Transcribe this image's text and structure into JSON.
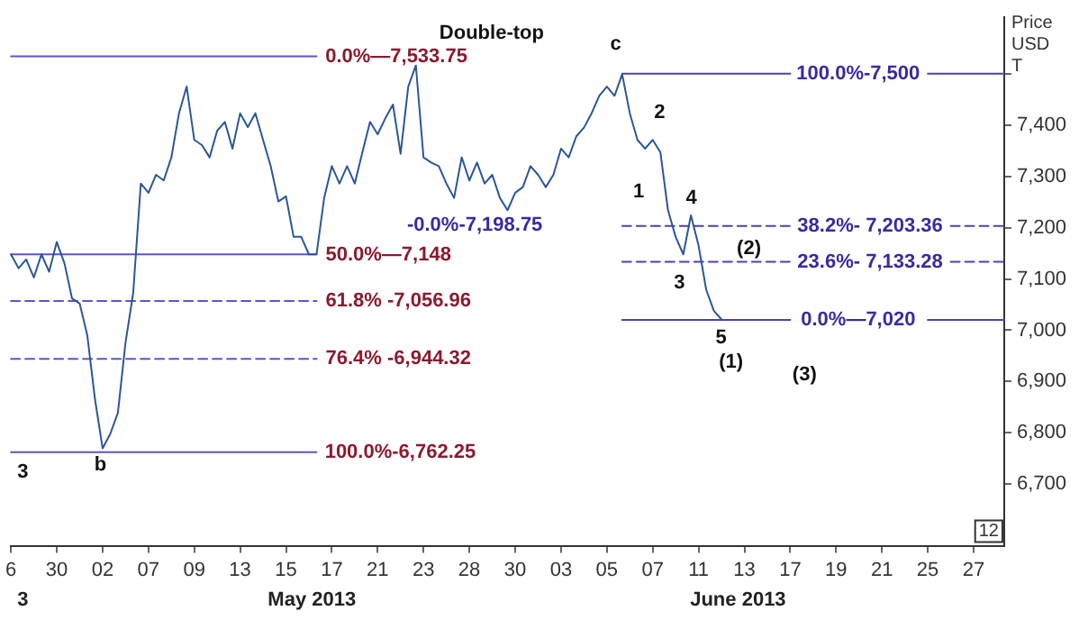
{
  "chart_data": {
    "type": "line",
    "ylabel": "Price USD T",
    "ylim": [
      6580,
      7610
    ],
    "categories": [
      "6",
      null,
      null,
      null,
      null,
      null,
      "30",
      null,
      null,
      null,
      null,
      null,
      "02",
      null,
      null,
      null,
      null,
      null,
      "07",
      null,
      null,
      null,
      null,
      null,
      "09",
      null,
      null,
      null,
      null,
      null,
      "13",
      null,
      null,
      null,
      null,
      null,
      "15",
      null,
      null,
      null,
      null,
      null,
      "17",
      null,
      null,
      null,
      null,
      null,
      "21",
      null,
      null,
      null,
      null,
      null,
      "23",
      null,
      null,
      null,
      null,
      null,
      "28",
      null,
      null,
      null,
      null,
      null,
      "30",
      null,
      null,
      null,
      null,
      null,
      "03",
      null,
      null,
      null,
      null,
      null,
      "05",
      null,
      null,
      null,
      null,
      null,
      "07",
      null,
      null,
      null,
      null,
      null,
      "11",
      null,
      null,
      null,
      null,
      null,
      "13",
      null,
      null,
      null,
      null,
      null,
      "17",
      null,
      null,
      null,
      null,
      null,
      "19",
      null,
      null,
      null,
      null,
      null,
      "21",
      null,
      null,
      null,
      null,
      null,
      "25",
      null,
      null,
      null,
      null,
      null,
      "27",
      null,
      null,
      null,
      null
    ],
    "yticks": [
      {
        "value": 6700,
        "label": "6,700"
      },
      {
        "value": 6800,
        "label": "6,800"
      },
      {
        "value": 6900,
        "label": "6,900"
      },
      {
        "value": 7000,
        "label": "7,000"
      },
      {
        "value": 7100,
        "label": "7,100"
      },
      {
        "value": 7200,
        "label": "7,200"
      },
      {
        "value": 7300,
        "label": "7,300"
      },
      {
        "value": 7400,
        "label": "7,400"
      },
      {
        "value": 7500,
        "label": null
      }
    ],
    "grid": false,
    "legend": false,
    "marker": "none",
    "series": [
      {
        "type": "line",
        "color": "#2b5797",
        "values": [
          7148,
          7121,
          7138,
          7103,
          7148,
          7114,
          7172,
          7131,
          7062,
          7052,
          6990,
          6866,
          6770,
          6798,
          6839,
          6976,
          7072,
          7286,
          7268,
          7303,
          7292,
          7337,
          7423,
          7475,
          7371,
          7361,
          7337,
          7389,
          7406,
          7354,
          7423,
          7396,
          7423,
          7371,
          7320,
          7251,
          7261,
          7182,
          7182,
          7148,
          7148,
          7258,
          7320,
          7286,
          7320,
          7286,
          7347,
          7406,
          7382,
          7413,
          7440,
          7344,
          7475,
          7516,
          7337,
          7327,
          7320,
          7286,
          7258,
          7337,
          7292,
          7327,
          7286,
          7303,
          7258,
          7234,
          7268,
          7279,
          7320,
          7303,
          7279,
          7303,
          7354,
          7337,
          7378,
          7395,
          7423,
          7457,
          7475,
          7457,
          7499,
          7423,
          7371,
          7354,
          7371,
          7347,
          7234,
          7182,
          7148,
          7224,
          7165,
          7079,
          7038,
          7021,
          null,
          null,
          null,
          null,
          null,
          null,
          null,
          null,
          null,
          null,
          null,
          null,
          null,
          null,
          null,
          null,
          null,
          null,
          null,
          null,
          null,
          null,
          null,
          null,
          null,
          null,
          null,
          null,
          null,
          null,
          null,
          null,
          null,
          null,
          null,
          null,
          null
        ]
      },
      {
        "type": "line",
        "color": "#5b55c8",
        "values": [
          7533.75,
          7533.75,
          7533.75,
          7533.75,
          7533.75,
          7533.75,
          7533.75,
          7533.75,
          7533.75,
          7533.75,
          7533.75,
          7533.75,
          7533.75,
          7533.75,
          7533.75,
          7533.75,
          7533.75,
          7533.75,
          7533.75,
          7533.75,
          7533.75,
          7533.75,
          7533.75,
          7533.75,
          7533.75,
          7533.75,
          7533.75,
          7533.75,
          7533.75,
          7533.75,
          7533.75,
          7533.75,
          7533.75,
          7533.75,
          7533.75,
          7533.75,
          7533.75,
          7533.75,
          7533.75,
          7533.75,
          7533.75,
          null,
          null,
          null,
          null,
          null,
          null,
          null,
          null,
          null,
          null,
          null,
          null,
          null,
          null,
          null,
          null,
          null,
          null,
          null,
          null,
          null,
          null,
          null,
          null,
          null,
          null,
          null,
          null,
          null,
          null,
          null,
          null,
          null,
          null,
          null,
          null,
          null,
          null,
          null,
          null,
          null,
          null,
          null,
          null,
          null,
          null,
          null,
          null,
          null,
          null,
          null,
          null,
          null,
          null,
          null,
          null,
          null,
          null,
          null,
          null,
          null,
          null,
          null,
          null,
          null,
          null,
          null,
          null,
          null,
          null,
          null,
          null,
          null,
          null,
          null,
          null,
          null,
          null,
          null,
          null,
          null,
          null,
          null,
          null,
          null,
          null,
          null,
          null,
          null,
          null
        ]
      },
      {
        "type": "line",
        "color": "#5b55c8",
        "values": [
          7148,
          7148,
          7148,
          7148,
          7148,
          7148,
          7148,
          7148,
          7148,
          7148,
          7148,
          7148,
          7148,
          7148,
          7148,
          7148,
          7148,
          7148,
          7148,
          7148,
          7148,
          7148,
          7148,
          7148,
          7148,
          7148,
          7148,
          7148,
          7148,
          7148,
          7148,
          7148,
          7148,
          7148,
          7148,
          7148,
          7148,
          7148,
          7148,
          7148,
          7148,
          null,
          null,
          null,
          null,
          null,
          null,
          null,
          null,
          null,
          null,
          null,
          null,
          null,
          null,
          null,
          null,
          null,
          null,
          null,
          null,
          null,
          null,
          null,
          null,
          null,
          null,
          null,
          null,
          null,
          null,
          null,
          null,
          null,
          null,
          null,
          null,
          null,
          null,
          null,
          null,
          null,
          null,
          null,
          null,
          null,
          null,
          null,
          null,
          null,
          null,
          null,
          null,
          null,
          null,
          null,
          null,
          null,
          null,
          null,
          null,
          null,
          null,
          null,
          null,
          null,
          null,
          null,
          null,
          null,
          null,
          null,
          null,
          null,
          null,
          null,
          null,
          null,
          null,
          null,
          null,
          null,
          null,
          null,
          null,
          null,
          null,
          null,
          null,
          null,
          null
        ]
      },
      {
        "type": "line",
        "color": "#5b55c8",
        "line_style": "dashed",
        "values": [
          7056.96,
          7056.96,
          7056.96,
          7056.96,
          7056.96,
          7056.96,
          7056.96,
          7056.96,
          7056.96,
          7056.96,
          7056.96,
          7056.96,
          7056.96,
          7056.96,
          7056.96,
          7056.96,
          7056.96,
          7056.96,
          7056.96,
          7056.96,
          7056.96,
          7056.96,
          7056.96,
          7056.96,
          7056.96,
          7056.96,
          7056.96,
          7056.96,
          7056.96,
          7056.96,
          7056.96,
          7056.96,
          7056.96,
          7056.96,
          7056.96,
          7056.96,
          7056.96,
          7056.96,
          7056.96,
          7056.96,
          7056.96,
          null,
          null,
          null,
          null,
          null,
          null,
          null,
          null,
          null,
          null,
          null,
          null,
          null,
          null,
          null,
          null,
          null,
          null,
          null,
          null,
          null,
          null,
          null,
          null,
          null,
          null,
          null,
          null,
          null,
          null,
          null,
          null,
          null,
          null,
          null,
          null,
          null,
          null,
          null,
          null,
          null,
          null,
          null,
          null,
          null,
          null,
          null,
          null,
          null,
          null,
          null,
          null,
          null,
          null,
          null,
          null,
          null,
          null,
          null,
          null,
          null,
          null,
          null,
          null,
          null,
          null,
          null,
          null,
          null,
          null,
          null,
          null,
          null,
          null,
          null,
          null,
          null,
          null,
          null,
          null,
          null,
          null,
          null,
          null,
          null,
          null,
          null,
          null,
          null,
          null
        ]
      },
      {
        "type": "line",
        "color": "#5b55c8",
        "line_style": "dashed",
        "values": [
          6944.32,
          6944.32,
          6944.32,
          6944.32,
          6944.32,
          6944.32,
          6944.32,
          6944.32,
          6944.32,
          6944.32,
          6944.32,
          6944.32,
          6944.32,
          6944.32,
          6944.32,
          6944.32,
          6944.32,
          6944.32,
          6944.32,
          6944.32,
          6944.32,
          6944.32,
          6944.32,
          6944.32,
          6944.32,
          6944.32,
          6944.32,
          6944.32,
          6944.32,
          6944.32,
          6944.32,
          6944.32,
          6944.32,
          6944.32,
          6944.32,
          6944.32,
          6944.32,
          6944.32,
          6944.32,
          6944.32,
          6944.32,
          null,
          null,
          null,
          null,
          null,
          null,
          null,
          null,
          null,
          null,
          null,
          null,
          null,
          null,
          null,
          null,
          null,
          null,
          null,
          null,
          null,
          null,
          null,
          null,
          null,
          null,
          null,
          null,
          null,
          null,
          null,
          null,
          null,
          null,
          null,
          null,
          null,
          null,
          null,
          null,
          null,
          null,
          null,
          null,
          null,
          null,
          null,
          null,
          null,
          null,
          null,
          null,
          null,
          null,
          null,
          null,
          null,
          null,
          null,
          null,
          null,
          null,
          null,
          null,
          null,
          null,
          null,
          null,
          null,
          null,
          null,
          null,
          null,
          null,
          null,
          null,
          null,
          null,
          null,
          null,
          null,
          null,
          null,
          null,
          null,
          null,
          null,
          null,
          null,
          null
        ]
      },
      {
        "type": "line",
        "color": "#5b55c8",
        "values": [
          6762.25,
          6762.25,
          6762.25,
          6762.25,
          6762.25,
          6762.25,
          6762.25,
          6762.25,
          6762.25,
          6762.25,
          6762.25,
          6762.25,
          6762.25,
          6762.25,
          6762.25,
          6762.25,
          6762.25,
          6762.25,
          6762.25,
          6762.25,
          6762.25,
          6762.25,
          6762.25,
          6762.25,
          6762.25,
          6762.25,
          6762.25,
          6762.25,
          6762.25,
          6762.25,
          6762.25,
          6762.25,
          6762.25,
          6762.25,
          6762.25,
          6762.25,
          6762.25,
          6762.25,
          6762.25,
          6762.25,
          6762.25,
          null,
          null,
          null,
          null,
          null,
          null,
          null,
          null,
          null,
          null,
          null,
          null,
          null,
          null,
          null,
          null,
          null,
          null,
          null,
          null,
          null,
          null,
          null,
          null,
          null,
          null,
          null,
          null,
          null,
          null,
          null,
          null,
          null,
          null,
          null,
          null,
          null,
          null,
          null,
          null,
          null,
          null,
          null,
          null,
          null,
          null,
          null,
          null,
          null,
          null,
          null,
          null,
          null,
          null,
          null,
          null,
          null,
          null,
          null,
          null,
          null,
          null,
          null,
          null,
          null,
          null,
          null,
          null,
          null,
          null,
          null,
          null,
          null,
          null,
          null,
          null,
          null,
          null,
          null,
          null,
          null,
          null,
          null,
          null,
          null,
          null,
          null,
          null,
          null,
          null
        ]
      },
      {
        "type": "line",
        "color": "#4b3fc0",
        "values": [
          null,
          null,
          null,
          null,
          null,
          null,
          null,
          null,
          null,
          null,
          null,
          null,
          null,
          null,
          null,
          null,
          null,
          null,
          null,
          null,
          null,
          null,
          null,
          null,
          null,
          null,
          null,
          null,
          null,
          null,
          null,
          null,
          null,
          null,
          null,
          null,
          null,
          null,
          null,
          null,
          null,
          null,
          null,
          null,
          null,
          null,
          null,
          null,
          null,
          null,
          null,
          null,
          null,
          null,
          null,
          null,
          null,
          null,
          null,
          null,
          null,
          null,
          null,
          null,
          null,
          null,
          null,
          null,
          null,
          null,
          null,
          null,
          null,
          null,
          null,
          null,
          null,
          null,
          null,
          null,
          7500,
          7500,
          7500,
          7500,
          7500,
          7500,
          7500,
          7500,
          7500,
          7500,
          7500,
          7500,
          7500,
          7500,
          7500,
          7500,
          7500,
          7500,
          7500,
          7500,
          7500,
          7500,
          7500,
          null,
          null,
          null,
          null,
          null,
          null,
          null,
          null,
          null,
          null,
          null,
          null,
          null,
          null,
          null,
          null,
          null,
          7500,
          7500,
          7500,
          7500,
          7500,
          7500,
          7500,
          7500,
          7500,
          7500,
          7500
        ]
      },
      {
        "type": "line",
        "color": "#4b3fc0",
        "line_style": "dashed",
        "values": [
          null,
          null,
          null,
          null,
          null,
          null,
          null,
          null,
          null,
          null,
          null,
          null,
          null,
          null,
          null,
          null,
          null,
          null,
          null,
          null,
          null,
          null,
          null,
          null,
          null,
          null,
          null,
          null,
          null,
          null,
          null,
          null,
          null,
          null,
          null,
          null,
          null,
          null,
          null,
          null,
          null,
          null,
          null,
          null,
          null,
          null,
          null,
          null,
          null,
          null,
          null,
          null,
          null,
          null,
          null,
          null,
          null,
          null,
          null,
          null,
          null,
          null,
          null,
          null,
          null,
          null,
          null,
          null,
          null,
          null,
          null,
          null,
          null,
          null,
          null,
          null,
          null,
          null,
          null,
          null,
          7203.36,
          7203.36,
          7203.36,
          7203.36,
          7203.36,
          7203.36,
          7203.36,
          7203.36,
          7203.36,
          7203.36,
          7203.36,
          7203.36,
          7203.36,
          7203.36,
          7203.36,
          7203.36,
          7203.36,
          7203.36,
          7203.36,
          7203.36,
          7203.36,
          7203.36,
          7203.36,
          null,
          null,
          null,
          null,
          null,
          null,
          null,
          null,
          null,
          null,
          null,
          null,
          null,
          null,
          null,
          null,
          null,
          null,
          null,
          null,
          7203.36,
          7203.36,
          7203.36,
          7203.36,
          7203.36,
          7203.36,
          7203.36,
          7203.36
        ]
      },
      {
        "type": "line",
        "color": "#4b3fc0",
        "line_style": "dashed",
        "values": [
          null,
          null,
          null,
          null,
          null,
          null,
          null,
          null,
          null,
          null,
          null,
          null,
          null,
          null,
          null,
          null,
          null,
          null,
          null,
          null,
          null,
          null,
          null,
          null,
          null,
          null,
          null,
          null,
          null,
          null,
          null,
          null,
          null,
          null,
          null,
          null,
          null,
          null,
          null,
          null,
          null,
          null,
          null,
          null,
          null,
          null,
          null,
          null,
          null,
          null,
          null,
          null,
          null,
          null,
          null,
          null,
          null,
          null,
          null,
          null,
          null,
          null,
          null,
          null,
          null,
          null,
          null,
          null,
          null,
          null,
          null,
          null,
          null,
          null,
          null,
          null,
          null,
          null,
          null,
          null,
          7133.28,
          7133.28,
          7133.28,
          7133.28,
          7133.28,
          7133.28,
          7133.28,
          7133.28,
          7133.28,
          7133.28,
          7133.28,
          7133.28,
          7133.28,
          7133.28,
          7133.28,
          7133.28,
          7133.28,
          7133.28,
          7133.28,
          7133.28,
          7133.28,
          7133.28,
          7133.28,
          null,
          null,
          null,
          null,
          null,
          null,
          null,
          null,
          null,
          null,
          null,
          null,
          null,
          null,
          null,
          null,
          null,
          null,
          null,
          null,
          7133.28,
          7133.28,
          7133.28,
          7133.28,
          7133.28,
          7133.28,
          7133.28,
          7133.28
        ]
      },
      {
        "type": "line",
        "color": "#4b3fc0",
        "values": [
          null,
          null,
          null,
          null,
          null,
          null,
          null,
          null,
          null,
          null,
          null,
          null,
          null,
          null,
          null,
          null,
          null,
          null,
          null,
          null,
          null,
          null,
          null,
          null,
          null,
          null,
          null,
          null,
          null,
          null,
          null,
          null,
          null,
          null,
          null,
          null,
          null,
          null,
          null,
          null,
          null,
          null,
          null,
          null,
          null,
          null,
          null,
          null,
          null,
          null,
          null,
          null,
          null,
          null,
          null,
          null,
          null,
          null,
          null,
          null,
          null,
          null,
          null,
          null,
          null,
          null,
          null,
          null,
          null,
          null,
          null,
          null,
          null,
          null,
          null,
          null,
          null,
          null,
          null,
          null,
          7020,
          7020,
          7020,
          7020,
          7020,
          7020,
          7020,
          7020,
          7020,
          7020,
          7020,
          7020,
          7020,
          7020,
          7020,
          7020,
          7020,
          7020,
          7020,
          7020,
          7020,
          7020,
          7020,
          null,
          null,
          null,
          null,
          null,
          null,
          null,
          null,
          null,
          null,
          null,
          null,
          null,
          null,
          null,
          null,
          null,
          7020,
          7020,
          7020,
          7020,
          7020,
          7020,
          7020,
          7020,
          7020,
          7020,
          7020
        ]
      }
    ],
    "annotations": [
      "0.0%—7,533.75",
      "50.0%—7,148",
      "61.8% -7,056.96",
      "76.4% -6,944.32",
      "100.0%-6,762.25",
      "100.0%-7,500",
      "38.2%- 7,203.36",
      "23.6%- 7,133.28",
      "0.0%—7,020",
      "-0.0%-7,198.75",
      "Double-top",
      "c",
      "1",
      "2",
      "3",
      "4",
      "5",
      "(1)",
      "(2)",
      "(3)",
      "b",
      "3",
      "3",
      "May 2013",
      "June 2013",
      "12"
    ]
  }
}
